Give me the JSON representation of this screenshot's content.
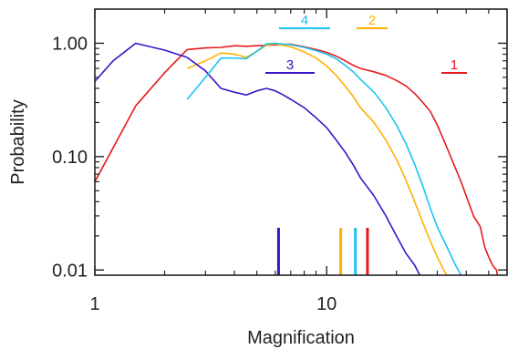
{
  "chart_data": {
    "type": "line",
    "xlabel": "Magnification",
    "ylabel": "Probability",
    "xscale": "log",
    "yscale": "log",
    "xlim": [
      1,
      60
    ],
    "ylim": [
      0.009,
      2.0
    ],
    "grid": false,
    "x_ticks": [
      {
        "value": 1,
        "label": "1"
      },
      {
        "value": 10,
        "label": "10"
      }
    ],
    "y_ticks": [
      {
        "value": 1.0,
        "label": "1.00"
      },
      {
        "value": 0.1,
        "label": "0.10"
      },
      {
        "value": 0.01,
        "label": "0.01"
      }
    ],
    "series": [
      {
        "name": "1",
        "color": "#e41a1c",
        "marker_x": 15.0,
        "legend_position": "right",
        "points": [
          [
            1.0,
            0.06
          ],
          [
            1.5,
            0.28
          ],
          [
            2.0,
            0.55
          ],
          [
            2.5,
            0.88
          ],
          [
            3.0,
            0.91
          ],
          [
            3.5,
            0.92
          ],
          [
            4.0,
            0.95
          ],
          [
            4.5,
            0.94
          ],
          [
            5.0,
            0.95
          ],
          [
            5.5,
            0.96
          ],
          [
            6.0,
            0.97
          ],
          [
            7.0,
            0.98
          ],
          [
            8.0,
            0.93
          ],
          [
            9.0,
            0.88
          ],
          [
            10.0,
            0.83
          ],
          [
            11.0,
            0.77
          ],
          [
            12.0,
            0.7
          ],
          [
            13.0,
            0.64
          ],
          [
            14.0,
            0.6
          ],
          [
            16.0,
            0.56
          ],
          [
            18.0,
            0.52
          ],
          [
            20.0,
            0.47
          ],
          [
            22.0,
            0.42
          ],
          [
            24.0,
            0.36
          ],
          [
            26.0,
            0.3
          ],
          [
            28.0,
            0.25
          ],
          [
            30.0,
            0.19
          ],
          [
            32.0,
            0.14
          ],
          [
            35.0,
            0.09
          ],
          [
            38.0,
            0.06
          ],
          [
            40.0,
            0.045
          ],
          [
            43.0,
            0.03
          ],
          [
            46.0,
            0.024
          ],
          [
            48.0,
            0.016
          ],
          [
            50.0,
            0.013
          ],
          [
            52.0,
            0.011
          ],
          [
            54.0,
            0.01
          ],
          [
            55.0,
            0.008
          ]
        ]
      },
      {
        "name": "2",
        "color": "#ffb000",
        "marker_x": 11.5,
        "legend_position": "top",
        "points": [
          [
            2.5,
            0.6
          ],
          [
            3.0,
            0.7
          ],
          [
            3.5,
            0.82
          ],
          [
            4.0,
            0.8
          ],
          [
            4.5,
            0.75
          ],
          [
            5.0,
            0.85
          ],
          [
            5.5,
            0.96
          ],
          [
            6.0,
            0.99
          ],
          [
            7.0,
            0.93
          ],
          [
            8.0,
            0.84
          ],
          [
            9.0,
            0.74
          ],
          [
            10.0,
            0.63
          ],
          [
            11.0,
            0.52
          ],
          [
            12.0,
            0.42
          ],
          [
            13.0,
            0.34
          ],
          [
            14.0,
            0.27
          ],
          [
            16.0,
            0.2
          ],
          [
            18.0,
            0.14
          ],
          [
            20.0,
            0.095
          ],
          [
            22.0,
            0.062
          ],
          [
            24.0,
            0.04
          ],
          [
            26.0,
            0.026
          ],
          [
            28.0,
            0.018
          ],
          [
            30.0,
            0.013
          ],
          [
            32.0,
            0.01
          ],
          [
            34.0,
            0.008
          ]
        ]
      },
      {
        "name": "3",
        "color": "#3a14c8",
        "marker_x": 6.2,
        "legend_position": "middle",
        "points": [
          [
            1.0,
            0.46
          ],
          [
            1.2,
            0.7
          ],
          [
            1.5,
            1.0
          ],
          [
            2.0,
            0.87
          ],
          [
            2.5,
            0.75
          ],
          [
            3.0,
            0.57
          ],
          [
            3.5,
            0.4
          ],
          [
            4.0,
            0.37
          ],
          [
            4.5,
            0.35
          ],
          [
            5.0,
            0.38
          ],
          [
            5.5,
            0.4
          ],
          [
            6.0,
            0.38
          ],
          [
            6.5,
            0.35
          ],
          [
            7.0,
            0.32
          ],
          [
            8.0,
            0.27
          ],
          [
            9.0,
            0.22
          ],
          [
            10.0,
            0.18
          ],
          [
            11.0,
            0.14
          ],
          [
            12.0,
            0.11
          ],
          [
            13.0,
            0.085
          ],
          [
            14.0,
            0.065
          ],
          [
            16.0,
            0.045
          ],
          [
            18.0,
            0.03
          ],
          [
            20.0,
            0.02
          ],
          [
            22.0,
            0.014
          ],
          [
            24.0,
            0.011
          ],
          [
            26.0,
            0.008
          ]
        ]
      },
      {
        "name": "4",
        "color": "#19c4f0",
        "marker_x": 13.3,
        "legend_position": "top",
        "points": [
          [
            2.5,
            0.32
          ],
          [
            3.0,
            0.5
          ],
          [
            3.5,
            0.74
          ],
          [
            4.0,
            0.74
          ],
          [
            4.5,
            0.73
          ],
          [
            5.0,
            0.85
          ],
          [
            5.5,
            0.99
          ],
          [
            6.0,
            1.0
          ],
          [
            7.0,
            0.97
          ],
          [
            8.0,
            0.92
          ],
          [
            9.0,
            0.86
          ],
          [
            10.0,
            0.8
          ],
          [
            11.0,
            0.73
          ],
          [
            12.0,
            0.64
          ],
          [
            13.0,
            0.56
          ],
          [
            14.0,
            0.48
          ],
          [
            16.0,
            0.37
          ],
          [
            18.0,
            0.27
          ],
          [
            20.0,
            0.19
          ],
          [
            22.0,
            0.13
          ],
          [
            24.0,
            0.085
          ],
          [
            26.0,
            0.055
          ],
          [
            28.0,
            0.035
          ],
          [
            30.0,
            0.024
          ],
          [
            33.0,
            0.016
          ],
          [
            36.0,
            0.011
          ],
          [
            38.0,
            0.009
          ],
          [
            40.0,
            0.008
          ]
        ]
      }
    ]
  }
}
